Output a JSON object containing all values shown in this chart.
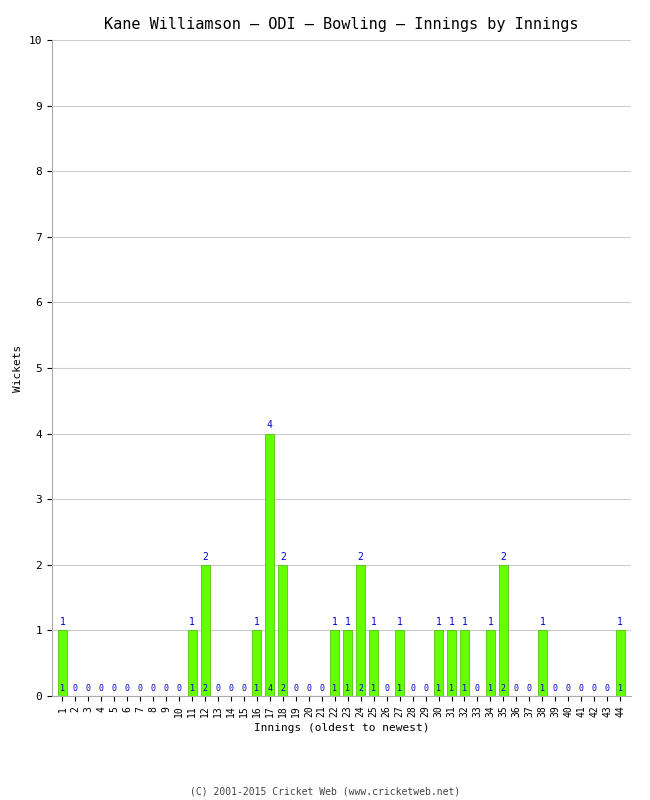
{
  "title": "Kane Williamson – ODI – Bowling – Innings by Innings",
  "xlabel": "Innings (oldest to newest)",
  "ylabel": "Wickets",
  "footer": "(C) 2001-2015 Cricket Web (www.cricketweb.net)",
  "ylim": [
    0,
    10
  ],
  "yticks": [
    0,
    1,
    2,
    3,
    4,
    5,
    6,
    7,
    8,
    9,
    10
  ],
  "bar_color": "#66ff00",
  "bar_edge_color": "#44bb00",
  "label_color": "#0000cc",
  "innings": [
    1,
    2,
    3,
    4,
    5,
    6,
    7,
    8,
    9,
    10,
    11,
    12,
    13,
    14,
    15,
    16,
    17,
    18,
    19,
    20,
    21,
    22,
    23,
    24,
    25,
    26,
    27,
    28,
    29,
    30,
    31,
    32,
    33,
    34,
    35,
    36,
    37,
    38,
    39,
    40,
    41,
    42,
    43,
    44
  ],
  "wickets": [
    1,
    0,
    0,
    0,
    0,
    0,
    0,
    0,
    0,
    0,
    1,
    2,
    0,
    0,
    0,
    1,
    4,
    2,
    0,
    0,
    0,
    1,
    1,
    2,
    1,
    0,
    1,
    0,
    0,
    1,
    1,
    1,
    0,
    1,
    2,
    0,
    0,
    1,
    0,
    0,
    0,
    0,
    0,
    1
  ],
  "background_color": "#ffffff",
  "grid_color": "#cccccc",
  "title_fontsize": 11,
  "axis_fontsize": 8,
  "label_fontsize": 7,
  "tick_fontsize": 7,
  "footer_fontsize": 7
}
